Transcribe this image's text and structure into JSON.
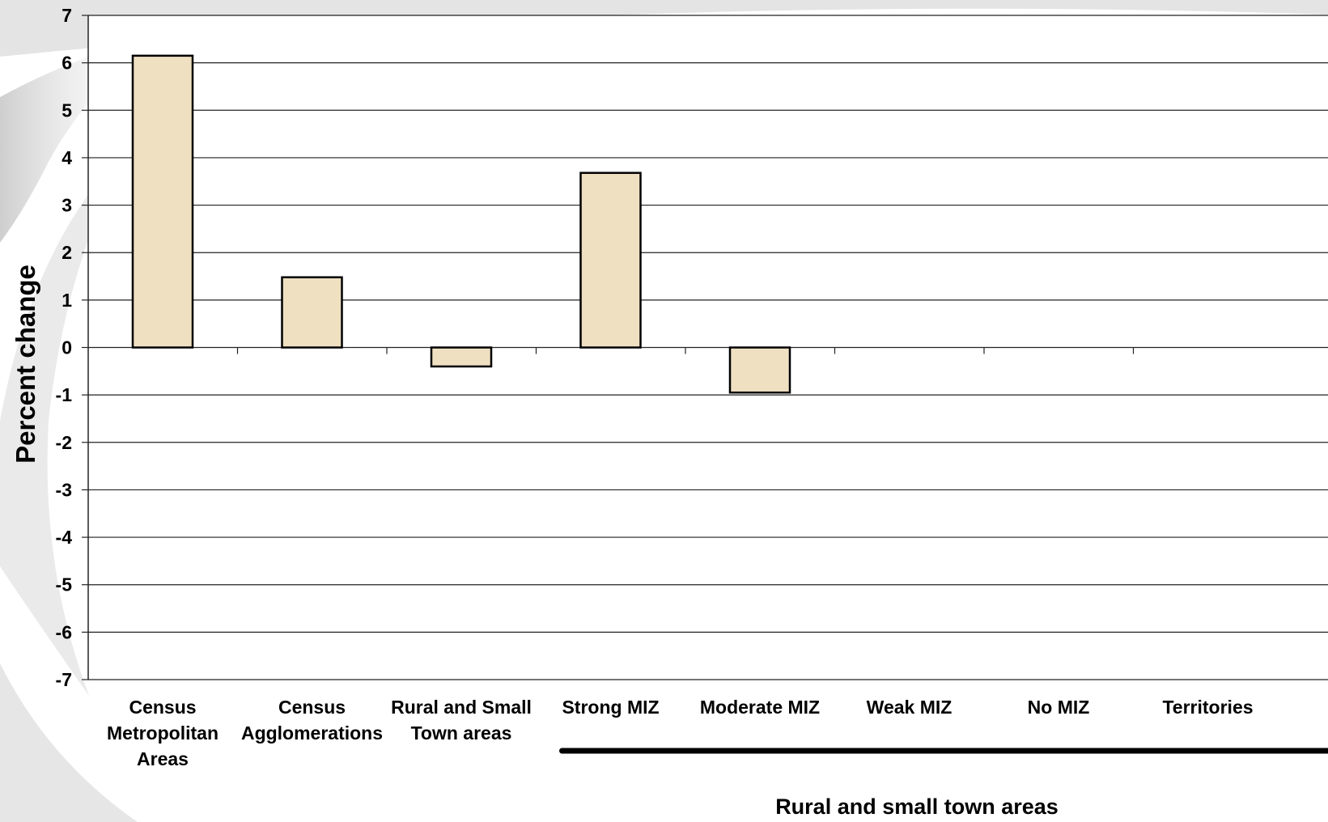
{
  "chart_data": {
    "type": "bar",
    "title": "",
    "ylabel": "Percent change",
    "xlabel": "",
    "ylim": [
      -7,
      7
    ],
    "yticks": [
      7,
      6,
      5,
      4,
      3,
      2,
      1,
      0,
      -1,
      -2,
      -3,
      -4,
      -5,
      -6,
      -7
    ],
    "grid": true,
    "categories": [
      "Census\nMetropolitan\nAreas",
      "Census\nAgglomerations",
      "Rural and Small\nTown areas",
      "Strong MIZ",
      "Moderate MIZ",
      "Weak MIZ",
      "No MIZ",
      "Territories"
    ],
    "values": [
      6.15,
      1.48,
      -0.4,
      3.68,
      -0.95,
      null,
      null,
      null
    ],
    "bar_color": "#efe0c2",
    "bar_edge_color": "#000000",
    "category_group": {
      "label": "Rural and small town areas",
      "from": "Strong MIZ",
      "to": "Territories"
    }
  }
}
